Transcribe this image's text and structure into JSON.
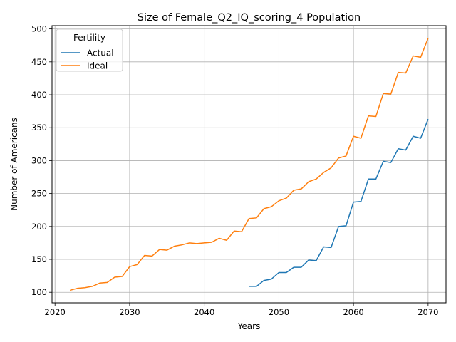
{
  "chart_data": {
    "type": "line",
    "title": "Size of Female_Q2_IQ_scoring_4 Population",
    "xlabel": "Years",
    "ylabel": "Number of Americans",
    "xlim": [
      2019.6,
      2072.4
    ],
    "ylim": [
      84,
      505
    ],
    "xticks": [
      2020,
      2030,
      2040,
      2050,
      2060,
      2070
    ],
    "yticks": [
      100,
      150,
      200,
      250,
      300,
      350,
      400,
      450,
      500
    ],
    "grid": true,
    "legend": {
      "title": "Fertility",
      "placement": "upper-left"
    },
    "series": [
      {
        "name": "Actual",
        "color": "#1f77b4",
        "x": [
          2046,
          2047,
          2048,
          2049,
          2050,
          2051,
          2052,
          2053,
          2054,
          2055,
          2056,
          2057,
          2058,
          2059,
          2060,
          2061,
          2062,
          2063,
          2064,
          2065,
          2066,
          2067,
          2068,
          2069,
          2070
        ],
        "y": [
          109,
          109,
          118,
          120,
          130,
          130,
          138,
          138,
          149,
          148,
          169,
          168,
          200,
          201,
          237,
          238,
          272,
          272,
          299,
          297,
          318,
          316,
          337,
          334,
          363
        ]
      },
      {
        "name": "Ideal",
        "color": "#ff7f0e",
        "x": [
          2022,
          2023,
          2024,
          2025,
          2026,
          2027,
          2028,
          2029,
          2030,
          2031,
          2032,
          2033,
          2034,
          2035,
          2036,
          2037,
          2038,
          2039,
          2040,
          2041,
          2042,
          2043,
          2044,
          2045,
          2046,
          2047,
          2048,
          2049,
          2050,
          2051,
          2052,
          2053,
          2054,
          2055,
          2056,
          2057,
          2058,
          2059,
          2060,
          2061,
          2062,
          2063,
          2064,
          2065,
          2066,
          2067,
          2068,
          2069,
          2070
        ],
        "y": [
          103,
          106,
          107,
          109,
          114,
          115,
          123,
          124,
          139,
          142,
          156,
          155,
          165,
          164,
          170,
          172,
          175,
          174,
          175,
          176,
          182,
          179,
          193,
          192,
          212,
          213,
          227,
          230,
          239,
          243,
          255,
          257,
          268,
          272,
          282,
          289,
          304,
          307,
          337,
          334,
          368,
          367,
          402,
          401,
          434,
          433,
          459,
          457,
          486
        ]
      }
    ]
  }
}
